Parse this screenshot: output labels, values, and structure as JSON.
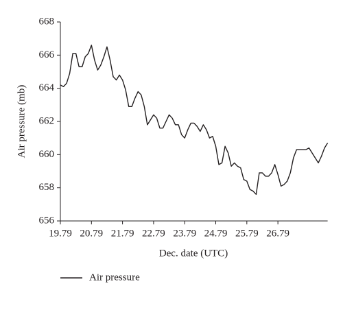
{
  "chart_data": {
    "type": "line",
    "xlabel": "Dec. date (UTC)",
    "ylabel": "Air pressure (mb)",
    "x": [
      19.79,
      19.89,
      19.99,
      20.09,
      20.19,
      20.29,
      20.39,
      20.49,
      20.59,
      20.69,
      20.79,
      20.89,
      20.99,
      21.09,
      21.19,
      21.29,
      21.39,
      21.49,
      21.59,
      21.69,
      21.79,
      21.89,
      21.99,
      22.09,
      22.19,
      22.29,
      22.39,
      22.49,
      22.59,
      22.69,
      22.79,
      22.89,
      22.99,
      23.09,
      23.19,
      23.29,
      23.39,
      23.49,
      23.59,
      23.69,
      23.79,
      23.89,
      23.99,
      24.09,
      24.19,
      24.29,
      24.39,
      24.49,
      24.59,
      24.69,
      24.79,
      24.89,
      24.99,
      25.09,
      25.19,
      25.29,
      25.39,
      25.49,
      25.59,
      25.69,
      25.79,
      25.89,
      25.99,
      26.09,
      26.19,
      26.29,
      26.39,
      26.49,
      26.59,
      26.69,
      26.79,
      26.89,
      26.99,
      27.09,
      27.19,
      27.29,
      27.39,
      27.49,
      27.59,
      27.69,
      27.79,
      27.89,
      27.99,
      28.09,
      28.19,
      28.29,
      28.39
    ],
    "series": [
      {
        "name": "Air pressure",
        "color": "#231f20",
        "values": [
          664.2,
          664.1,
          664.3,
          664.9,
          666.1,
          666.1,
          665.3,
          665.3,
          665.9,
          666.1,
          666.6,
          665.7,
          665.1,
          665.4,
          665.9,
          666.5,
          665.7,
          664.7,
          664.5,
          664.8,
          664.5,
          663.9,
          662.9,
          662.9,
          663.4,
          663.8,
          663.6,
          662.9,
          661.8,
          662.1,
          662.4,
          662.2,
          661.6,
          661.6,
          662.0,
          662.4,
          662.2,
          661.8,
          661.8,
          661.2,
          661.0,
          661.5,
          661.9,
          661.9,
          661.7,
          661.4,
          661.8,
          661.5,
          661.0,
          661.1,
          660.5,
          659.4,
          659.5,
          660.5,
          660.1,
          659.3,
          659.5,
          659.3,
          659.2,
          658.5,
          658.4,
          657.9,
          657.8,
          657.6,
          658.9,
          658.9,
          658.7,
          658.7,
          658.9,
          659.4,
          658.8,
          658.1,
          658.2,
          658.4,
          658.9,
          659.8,
          660.3,
          660.3,
          660.3,
          660.3,
          660.4,
          660.1,
          659.8,
          659.5,
          659.9,
          660.4,
          660.7
        ]
      }
    ],
    "xlim": [
      19.79,
      28.39
    ],
    "xticks": [
      19.79,
      20.79,
      21.79,
      22.79,
      23.79,
      24.79,
      25.79,
      26.79
    ],
    "ylim": [
      656,
      668
    ],
    "yticks": [
      656,
      658,
      660,
      662,
      664,
      666,
      668
    ]
  }
}
